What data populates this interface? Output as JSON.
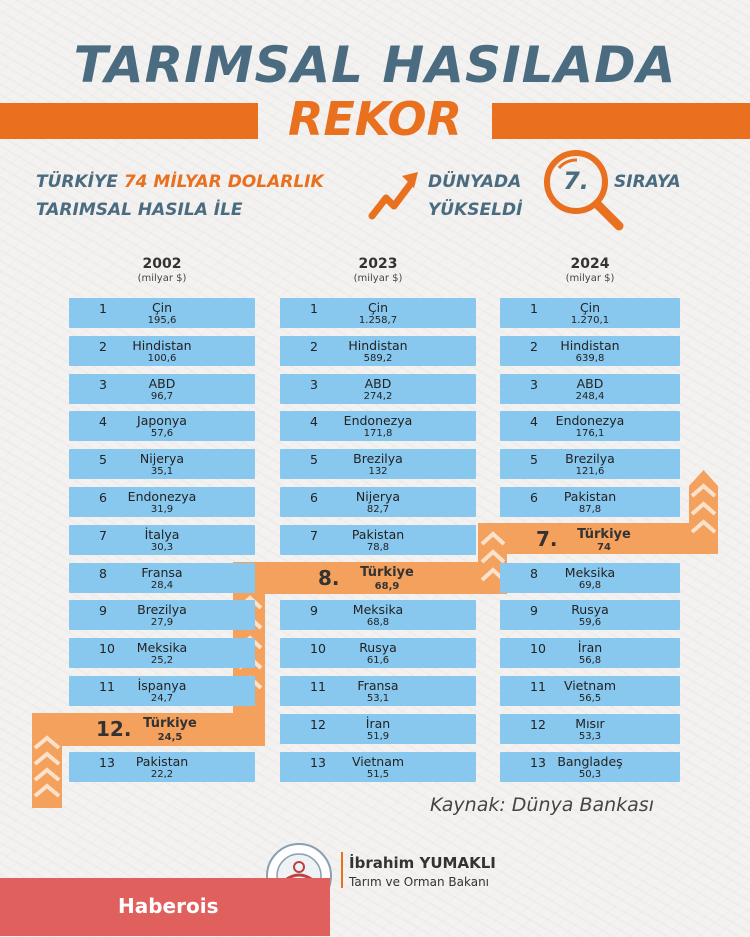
{
  "title": {
    "line1": "TARIMSAL HASILADA",
    "line2": "REKOR"
  },
  "subtitle": {
    "part1": "TÜRKİYE",
    "highlight": "74 MİLYAR DOLARLIK",
    "part2": "TARIMSAL HASILA İLE",
    "part3": "DÜNYADA",
    "rank": "7.",
    "part4": "SIRAYA",
    "part5": "YÜKSELDİ"
  },
  "columns": [
    {
      "year": "2002",
      "unit": "(milyar $)",
      "rows": [
        {
          "rank": "1",
          "name": "Çin",
          "value": "195,6"
        },
        {
          "rank": "2",
          "name": "Hindistan",
          "value": "100,6"
        },
        {
          "rank": "3",
          "name": "ABD",
          "value": "96,7"
        },
        {
          "rank": "4",
          "name": "Japonya",
          "value": "57,6"
        },
        {
          "rank": "5",
          "name": "Nijerya",
          "value": "35,1"
        },
        {
          "rank": "6",
          "name": "Endonezya",
          "value": "31,9"
        },
        {
          "rank": "7",
          "name": "İtalya",
          "value": "30,3"
        },
        {
          "rank": "8",
          "name": "Fransa",
          "value": "28,4"
        },
        {
          "rank": "9",
          "name": "Brezilya",
          "value": "27,9"
        },
        {
          "rank": "10",
          "name": "Meksika",
          "value": "25,2"
        },
        {
          "rank": "11",
          "name": "İspanya",
          "value": "24,7"
        },
        {
          "rank": "13",
          "name": "Pakistan",
          "value": "22,2"
        }
      ],
      "turkey": {
        "rank": "12.",
        "name": "Türkiye",
        "value": "24,5"
      }
    },
    {
      "year": "2023",
      "unit": "(milyar $)",
      "rows": [
        {
          "rank": "1",
          "name": "Çin",
          "value": "1.258,7"
        },
        {
          "rank": "2",
          "name": "Hindistan",
          "value": "589,2"
        },
        {
          "rank": "3",
          "name": "ABD",
          "value": "274,2"
        },
        {
          "rank": "4",
          "name": "Endonezya",
          "value": "171,8"
        },
        {
          "rank": "5",
          "name": "Brezilya",
          "value": "132"
        },
        {
          "rank": "6",
          "name": "Nijerya",
          "value": "82,7"
        },
        {
          "rank": "7",
          "name": "Pakistan",
          "value": "78,8"
        },
        {
          "rank": "9",
          "name": "Meksika",
          "value": "68,8"
        },
        {
          "rank": "10",
          "name": "Rusya",
          "value": "61,6"
        },
        {
          "rank": "11",
          "name": "Fransa",
          "value": "53,1"
        },
        {
          "rank": "12",
          "name": "İran",
          "value": "51,9"
        },
        {
          "rank": "13",
          "name": "Vietnam",
          "value": "51,5"
        }
      ],
      "turkey": {
        "rank": "8.",
        "name": "Türkiye",
        "value": "68,9"
      }
    },
    {
      "year": "2024",
      "unit": "(milyar $)",
      "rows": [
        {
          "rank": "1",
          "name": "Çin",
          "value": "1.270,1"
        },
        {
          "rank": "2",
          "name": "Hindistan",
          "value": "639,8"
        },
        {
          "rank": "3",
          "name": "ABD",
          "value": "248,4"
        },
        {
          "rank": "4",
          "name": "Endonezya",
          "value": "176,1"
        },
        {
          "rank": "5",
          "name": "Brezilya",
          "value": "121,6"
        },
        {
          "rank": "6",
          "name": "Pakistan",
          "value": "87,8"
        },
        {
          "rank": "8",
          "name": "Meksika",
          "value": "69,8"
        },
        {
          "rank": "9",
          "name": "Rusya",
          "value": "59,6"
        },
        {
          "rank": "10",
          "name": "İran",
          "value": "56,8"
        },
        {
          "rank": "11",
          "name": "Vietnam",
          "value": "56,5"
        },
        {
          "rank": "12",
          "name": "Mısır",
          "value": "53,3"
        },
        {
          "rank": "13",
          "name": "Bangladeş",
          "value": "50,3"
        }
      ],
      "turkey": {
        "rank": "7.",
        "name": "Türkiye",
        "value": "74"
      }
    }
  ],
  "source": "Kaynak: Dünya Bankası",
  "signature": {
    "name": "İbrahim YUMAKLI",
    "title": "Tarım ve Orman Bakanı"
  },
  "watermark": "Haberois",
  "colors": {
    "accent": "#e8701f",
    "title": "#4a6b80",
    "row": "#88c8ef",
    "turkey_band": "#f5a15e",
    "watermark_bg": "#e0605e"
  }
}
